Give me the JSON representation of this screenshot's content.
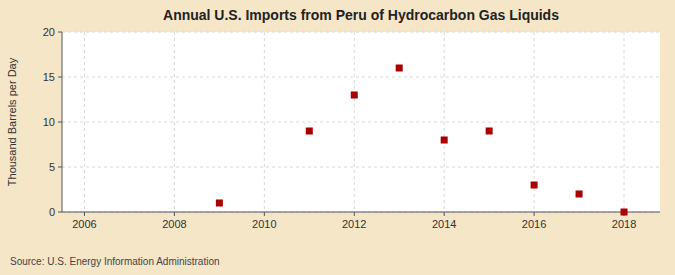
{
  "chart_data": {
    "type": "scatter",
    "title": "Annual U.S. Imports from Peru of Hydrocarbon Gas Liquids",
    "y_label": "Thousand Barrels per Day",
    "annotations": [
      "Source: U.S. Energy Information Administration"
    ],
    "x": [
      2009,
      2011,
      2012,
      2013,
      2014,
      2015,
      2016,
      2017,
      2018
    ],
    "values": [
      1,
      9,
      13,
      16,
      8,
      9,
      3,
      2,
      0
    ],
    "color": "#aa0000",
    "marker": "square",
    "xlim": [
      2005.5,
      2018.8
    ],
    "ylim": [
      0,
      20
    ],
    "xticks": [
      2006,
      2008,
      2010,
      2012,
      2014,
      2016,
      2018
    ],
    "yticks": [
      0,
      5,
      10,
      15,
      20
    ],
    "grid": true
  }
}
